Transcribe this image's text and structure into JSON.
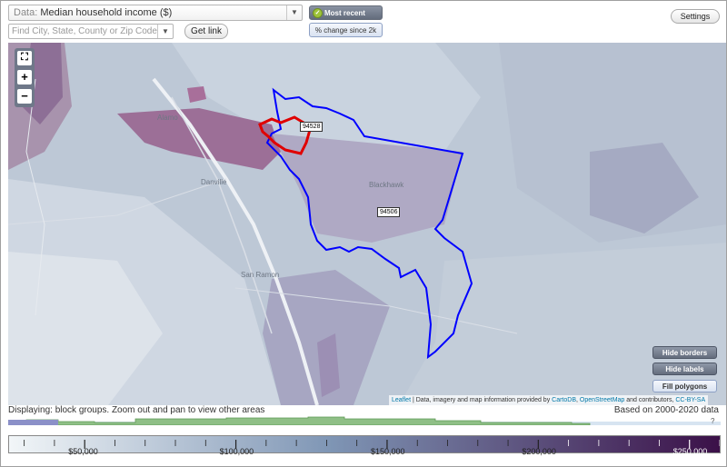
{
  "topbar": {
    "data_label": "Data:",
    "data_value": "Median household income ($)",
    "find_placeholder": "Find City, State, County or Zip Code",
    "get_link": "Get link",
    "most_recent": "Most recent value",
    "pct_change": "% change since 2k",
    "settings": "Settings"
  },
  "zoom": {
    "fit": "⛶",
    "in": "+",
    "out": "−"
  },
  "map": {
    "places": [
      "Alamo",
      "Danville",
      "Blackhawk",
      "San Ramon"
    ],
    "zip_labels": [
      "94528",
      "94506"
    ],
    "boundary_colors": {
      "zip_94506": "#0000ff",
      "zip_94528": "#e00000"
    }
  },
  "map_buttons": {
    "hide_borders": "Hide borders",
    "hide_labels": "Hide labels",
    "fill_polygons": "Fill polygons"
  },
  "attribution": {
    "leaflet": "Leaflet",
    "text1": " | Data, imagery and map information provided by ",
    "cartodb": "CartoDB",
    "sep": ", ",
    "osm": "OpenStreetMap",
    "text2": " and contributors, ",
    "license": "CC-BY-SA"
  },
  "status": {
    "displaying": "Displaying: block groups. Zoom out and pan to view other areas",
    "based_on": "Based on 2000-2020 data",
    "question": "?"
  },
  "legend": {
    "ticks": [
      "$50,000",
      "$100,000",
      "$150,000",
      "$200,000",
      "$250,000"
    ],
    "range_min": 25000,
    "range_max": 260000,
    "color_low": "#f2f6f8",
    "color_mid": "#7f96b5",
    "color_high": "#3b1048"
  }
}
